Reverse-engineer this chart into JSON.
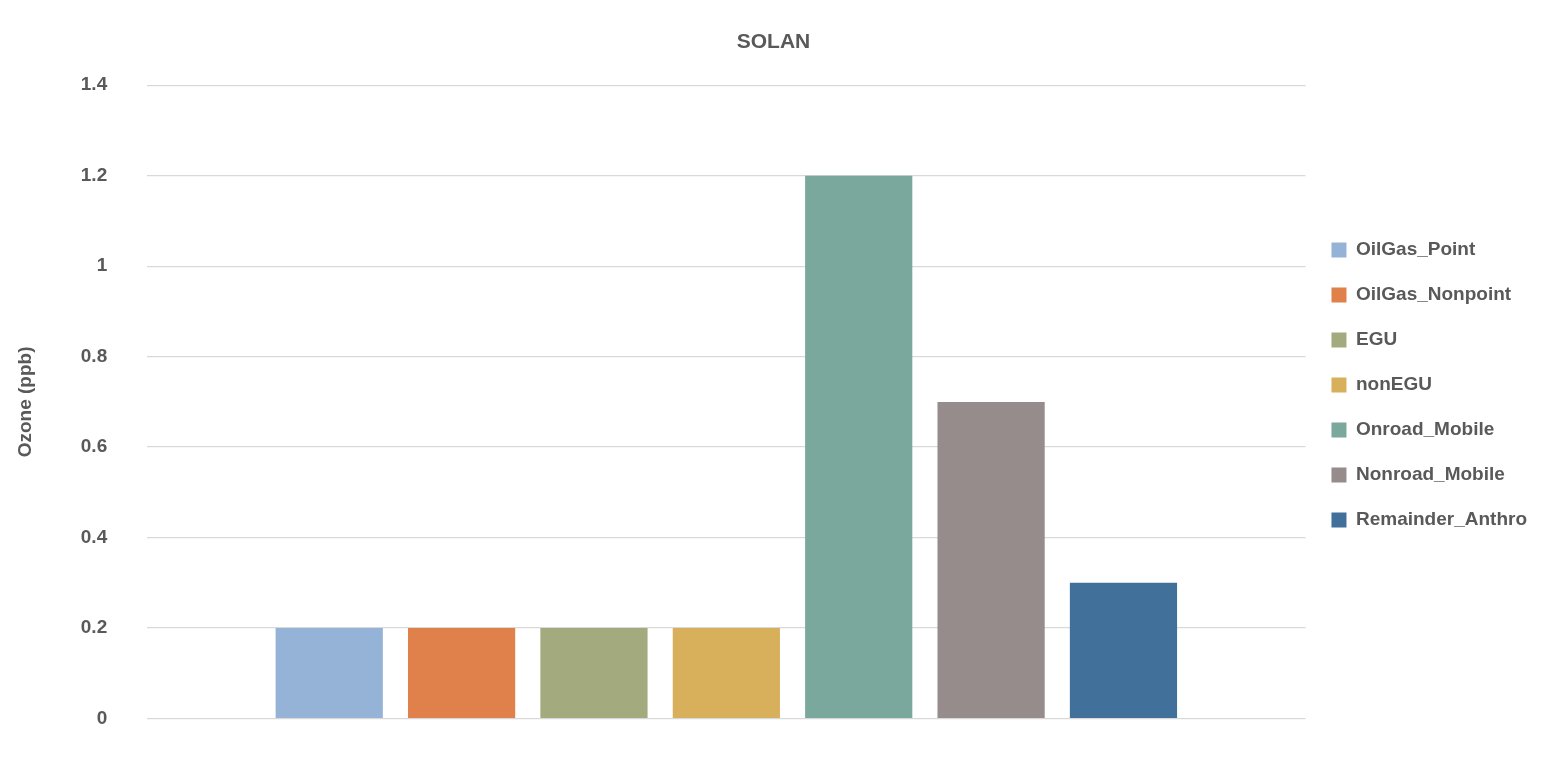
{
  "chart_data": {
    "type": "bar",
    "title": "SOLAN",
    "ylabel": "Ozone (ppb)",
    "categories": [
      null
    ],
    "series": [
      {
        "name": "OilGas_Point",
        "color": "#95b3d7",
        "values": [
          0.2
        ]
      },
      {
        "name": "OilGas_Nonpoint",
        "color": "#e0804a",
        "values": [
          0.2
        ]
      },
      {
        "name": "EGU",
        "color": "#a3aa7e",
        "values": [
          0.2
        ]
      },
      {
        "name": "nonEGU",
        "color": "#d8b05c",
        "values": [
          0.2
        ]
      },
      {
        "name": "Onroad_Mobile",
        "color": "#7ba89c",
        "values": [
          1.2
        ]
      },
      {
        "name": "Nonroad_Mobile",
        "color": "#968c8b",
        "values": [
          0.7
        ]
      },
      {
        "name": "Remainder_Anthro",
        "color": "#41709a",
        "values": [
          0.3
        ]
      }
    ],
    "ylim": [
      0,
      1.4
    ],
    "yticks": [
      0,
      0.2,
      0.4,
      0.6,
      0.8,
      1,
      1.2,
      1.4
    ],
    "grid": "y",
    "legend": "right",
    "tick_labels": "y"
  }
}
